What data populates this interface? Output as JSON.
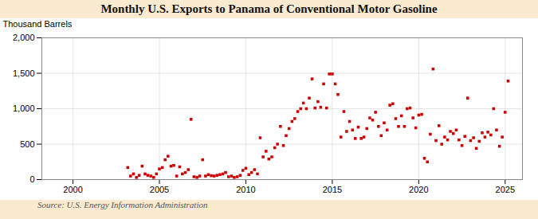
{
  "chart_data": {
    "type": "scatter",
    "title": "Monthly U.S. Exports to Panama of Conventional Motor Gasoline",
    "ylabel": "Thousand Barrels",
    "source": "Source: U.S. Energy Information Administration",
    "color": "#cc0000",
    "marker": "square",
    "grid": true,
    "xlim": [
      1998.2,
      2026.0
    ],
    "xticks": [
      2000,
      2005,
      2010,
      2015,
      2020,
      2025
    ],
    "ylim": [
      0,
      2000
    ],
    "yticks": [
      0,
      500,
      {
        "value": 1000,
        "label": "1,000"
      },
      {
        "value": 1500,
        "label": "1,500"
      },
      {
        "value": 2000,
        "label": "2,000"
      }
    ],
    "x": [
      2003.17,
      2003.33,
      2003.5,
      2003.67,
      2003.83,
      2004.0,
      2004.17,
      2004.33,
      2004.5,
      2004.67,
      2004.83,
      2005.0,
      2005.17,
      2005.33,
      2005.5,
      2005.67,
      2005.83,
      2006.0,
      2006.17,
      2006.33,
      2006.5,
      2006.67,
      2006.83,
      2007.0,
      2007.17,
      2007.33,
      2007.5,
      2007.67,
      2007.83,
      2008.0,
      2008.17,
      2008.33,
      2008.5,
      2008.67,
      2008.83,
      2009.0,
      2009.17,
      2009.33,
      2009.5,
      2009.67,
      2009.83,
      2010.0,
      2010.17,
      2010.33,
      2010.5,
      2010.67,
      2010.83,
      2011.0,
      2011.17,
      2011.33,
      2011.5,
      2011.67,
      2011.83,
      2012.0,
      2012.17,
      2012.33,
      2012.5,
      2012.67,
      2012.83,
      2013.0,
      2013.17,
      2013.33,
      2013.5,
      2013.67,
      2013.83,
      2014.0,
      2014.17,
      2014.33,
      2014.5,
      2014.67,
      2014.83,
      2015.0,
      2015.17,
      2015.33,
      2015.5,
      2015.67,
      2015.83,
      2016.0,
      2016.17,
      2016.33,
      2016.5,
      2016.67,
      2016.83,
      2017.0,
      2017.17,
      2017.33,
      2017.5,
      2017.67,
      2017.83,
      2018.0,
      2018.17,
      2018.33,
      2018.5,
      2018.67,
      2018.83,
      2019.0,
      2019.17,
      2019.33,
      2019.5,
      2019.67,
      2019.83,
      2020.0,
      2020.17,
      2020.33,
      2020.5,
      2020.67,
      2020.83,
      2021.0,
      2021.17,
      2021.33,
      2021.5,
      2021.67,
      2021.83,
      2022.0,
      2022.17,
      2022.33,
      2022.5,
      2022.67,
      2022.83,
      2023.0,
      2023.17,
      2023.33,
      2023.5,
      2023.67,
      2023.83,
      2024.0,
      2024.17,
      2024.33,
      2024.5,
      2024.67,
      2024.83,
      2025.0,
      2025.17
    ],
    "values": [
      170,
      50,
      80,
      30,
      60,
      190,
      80,
      60,
      50,
      30,
      80,
      150,
      170,
      280,
      330,
      190,
      200,
      50,
      180,
      80,
      100,
      140,
      850,
      40,
      30,
      50,
      280,
      50,
      70,
      55,
      50,
      60,
      70,
      80,
      100,
      40,
      50,
      30,
      40,
      60,
      130,
      160,
      70,
      100,
      140,
      80,
      590,
      320,
      400,
      290,
      320,
      450,
      500,
      750,
      480,
      620,
      720,
      820,
      860,
      960,
      1000,
      1080,
      1000,
      1150,
      1420,
      1010,
      1100,
      1020,
      1350,
      1010,
      1490,
      1490,
      1350,
      1200,
      600,
      960,
      680,
      820,
      700,
      580,
      740,
      580,
      600,
      720,
      870,
      840,
      950,
      750,
      620,
      800,
      700,
      1050,
      1070,
      860,
      750,
      900,
      750,
      1000,
      1010,
      870,
      730,
      910,
      920,
      300,
      250,
      640,
      1560,
      550,
      760,
      500,
      600,
      560,
      680,
      650,
      700,
      560,
      480,
      610,
      1150,
      550,
      590,
      440,
      540,
      660,
      600,
      670,
      630,
      1000,
      700,
      470,
      600,
      950,
      1390
    ]
  }
}
